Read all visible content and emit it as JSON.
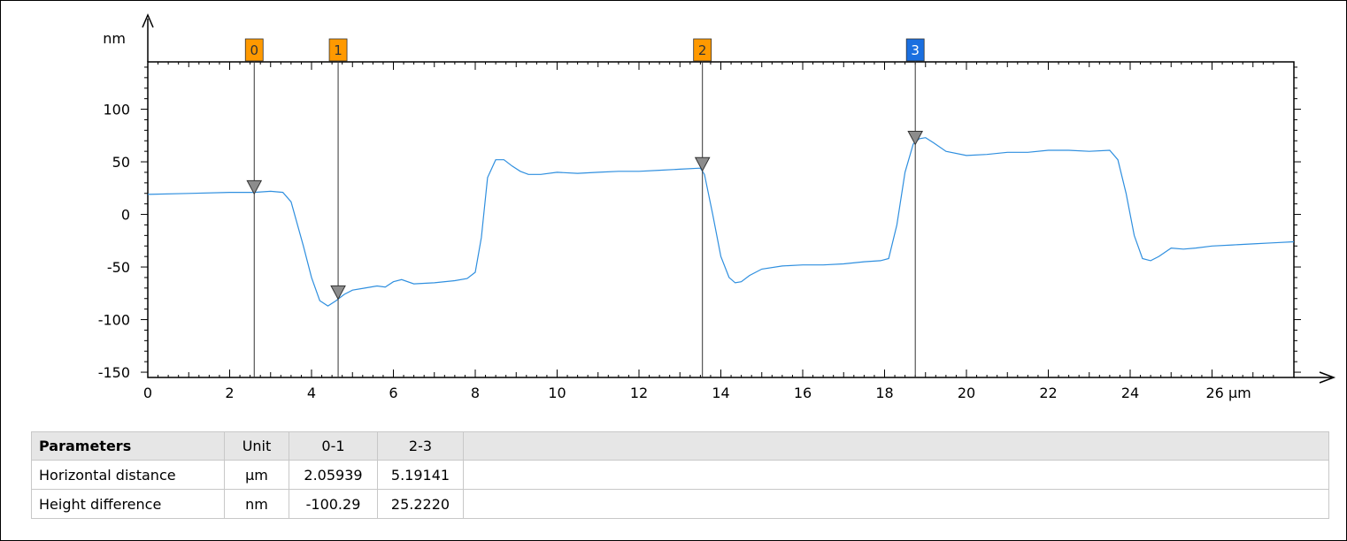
{
  "chart_data": {
    "type": "line",
    "y_unit": "nm",
    "x_unit": "µm",
    "xlim": [
      0,
      28
    ],
    "ylim": [
      -155,
      145
    ],
    "x_ticks": [
      {
        "value": 0,
        "label": "0"
      },
      {
        "value": 2,
        "label": "2"
      },
      {
        "value": 4,
        "label": "4"
      },
      {
        "value": 6,
        "label": "6"
      },
      {
        "value": 8,
        "label": "8"
      },
      {
        "value": 10,
        "label": "10"
      },
      {
        "value": 12,
        "label": "12"
      },
      {
        "value": 14,
        "label": "14"
      },
      {
        "value": 16,
        "label": "16"
      },
      {
        "value": 18,
        "label": "18"
      },
      {
        "value": 20,
        "label": "20"
      },
      {
        "value": 22,
        "label": "22"
      },
      {
        "value": 24,
        "label": "24"
      },
      {
        "value": 26,
        "label": "26 µm"
      }
    ],
    "y_ticks": [
      {
        "value": 100,
        "label": "100"
      },
      {
        "value": 50,
        "label": "50"
      },
      {
        "value": 0,
        "label": "0"
      },
      {
        "value": -50,
        "label": "-50"
      },
      {
        "value": -100,
        "label": "-100"
      },
      {
        "value": -150,
        "label": "-150"
      }
    ],
    "series": [
      {
        "color": "#2f8fdf",
        "x": [
          0,
          1,
          2,
          2.6,
          3.0,
          3.3,
          3.5,
          3.8,
          4.0,
          4.2,
          4.4,
          4.6,
          4.8,
          5.0,
          5.3,
          5.6,
          5.8,
          6.0,
          6.2,
          6.5,
          7.0,
          7.5,
          7.8,
          8.0,
          8.15,
          8.3,
          8.5,
          8.7,
          8.9,
          9.1,
          9.3,
          9.6,
          10.0,
          10.5,
          11.0,
          11.5,
          12.0,
          12.5,
          13.0,
          13.5,
          13.6,
          13.8,
          14.0,
          14.2,
          14.35,
          14.5,
          14.7,
          15.0,
          15.5,
          16.0,
          16.5,
          17.0,
          17.5,
          17.9,
          18.1,
          18.3,
          18.5,
          18.7,
          18.85,
          19.0,
          19.2,
          19.5,
          20.0,
          20.5,
          21.0,
          21.5,
          22.0,
          22.5,
          23.0,
          23.5,
          23.7,
          23.9,
          24.1,
          24.3,
          24.5,
          24.7,
          25.0,
          25.3,
          25.6,
          26.0,
          26.5,
          27.0,
          27.5,
          28.0
        ],
        "y": [
          19,
          20,
          21,
          21,
          22,
          21,
          12,
          -30,
          -60,
          -82,
          -87,
          -82,
          -76,
          -72,
          -70,
          -68,
          -69,
          -64,
          -62,
          -66,
          -65,
          -63,
          -61,
          -55,
          -22,
          35,
          52,
          52,
          46,
          41,
          38,
          38,
          40,
          39,
          40,
          41,
          41,
          42,
          43,
          44,
          38,
          0,
          -40,
          -60,
          -65,
          -64,
          -58,
          -52,
          -49,
          -48,
          -48,
          -47,
          -45,
          -44,
          -42,
          -10,
          40,
          67,
          72,
          73,
          68,
          60,
          56,
          57,
          59,
          59,
          61,
          61,
          60,
          61,
          52,
          20,
          -20,
          -42,
          -44,
          -40,
          -32,
          -33,
          -32,
          -30,
          -29,
          -28,
          -27,
          -26
        ]
      }
    ],
    "cursors": [
      {
        "label": "0",
        "x": 2.6,
        "y": 22,
        "color": "#ff9900"
      },
      {
        "label": "1",
        "x": 4.65,
        "y": -78,
        "color": "#ff9900"
      },
      {
        "label": "2",
        "x": 13.55,
        "y": 44,
        "color": "#ff9900"
      },
      {
        "label": "3",
        "x": 18.75,
        "y": 69,
        "color": "#1a6fe0"
      }
    ]
  },
  "parameters_table": {
    "headers": [
      "Parameters",
      "Unit",
      "0-1",
      "2-3"
    ],
    "rows": [
      {
        "name": "Horizontal distance",
        "unit": "µm",
        "values": [
          "2.05939",
          "5.19141"
        ]
      },
      {
        "name": "Height difference",
        "unit": "nm",
        "values": [
          "-100.29",
          "25.2220"
        ]
      }
    ]
  }
}
